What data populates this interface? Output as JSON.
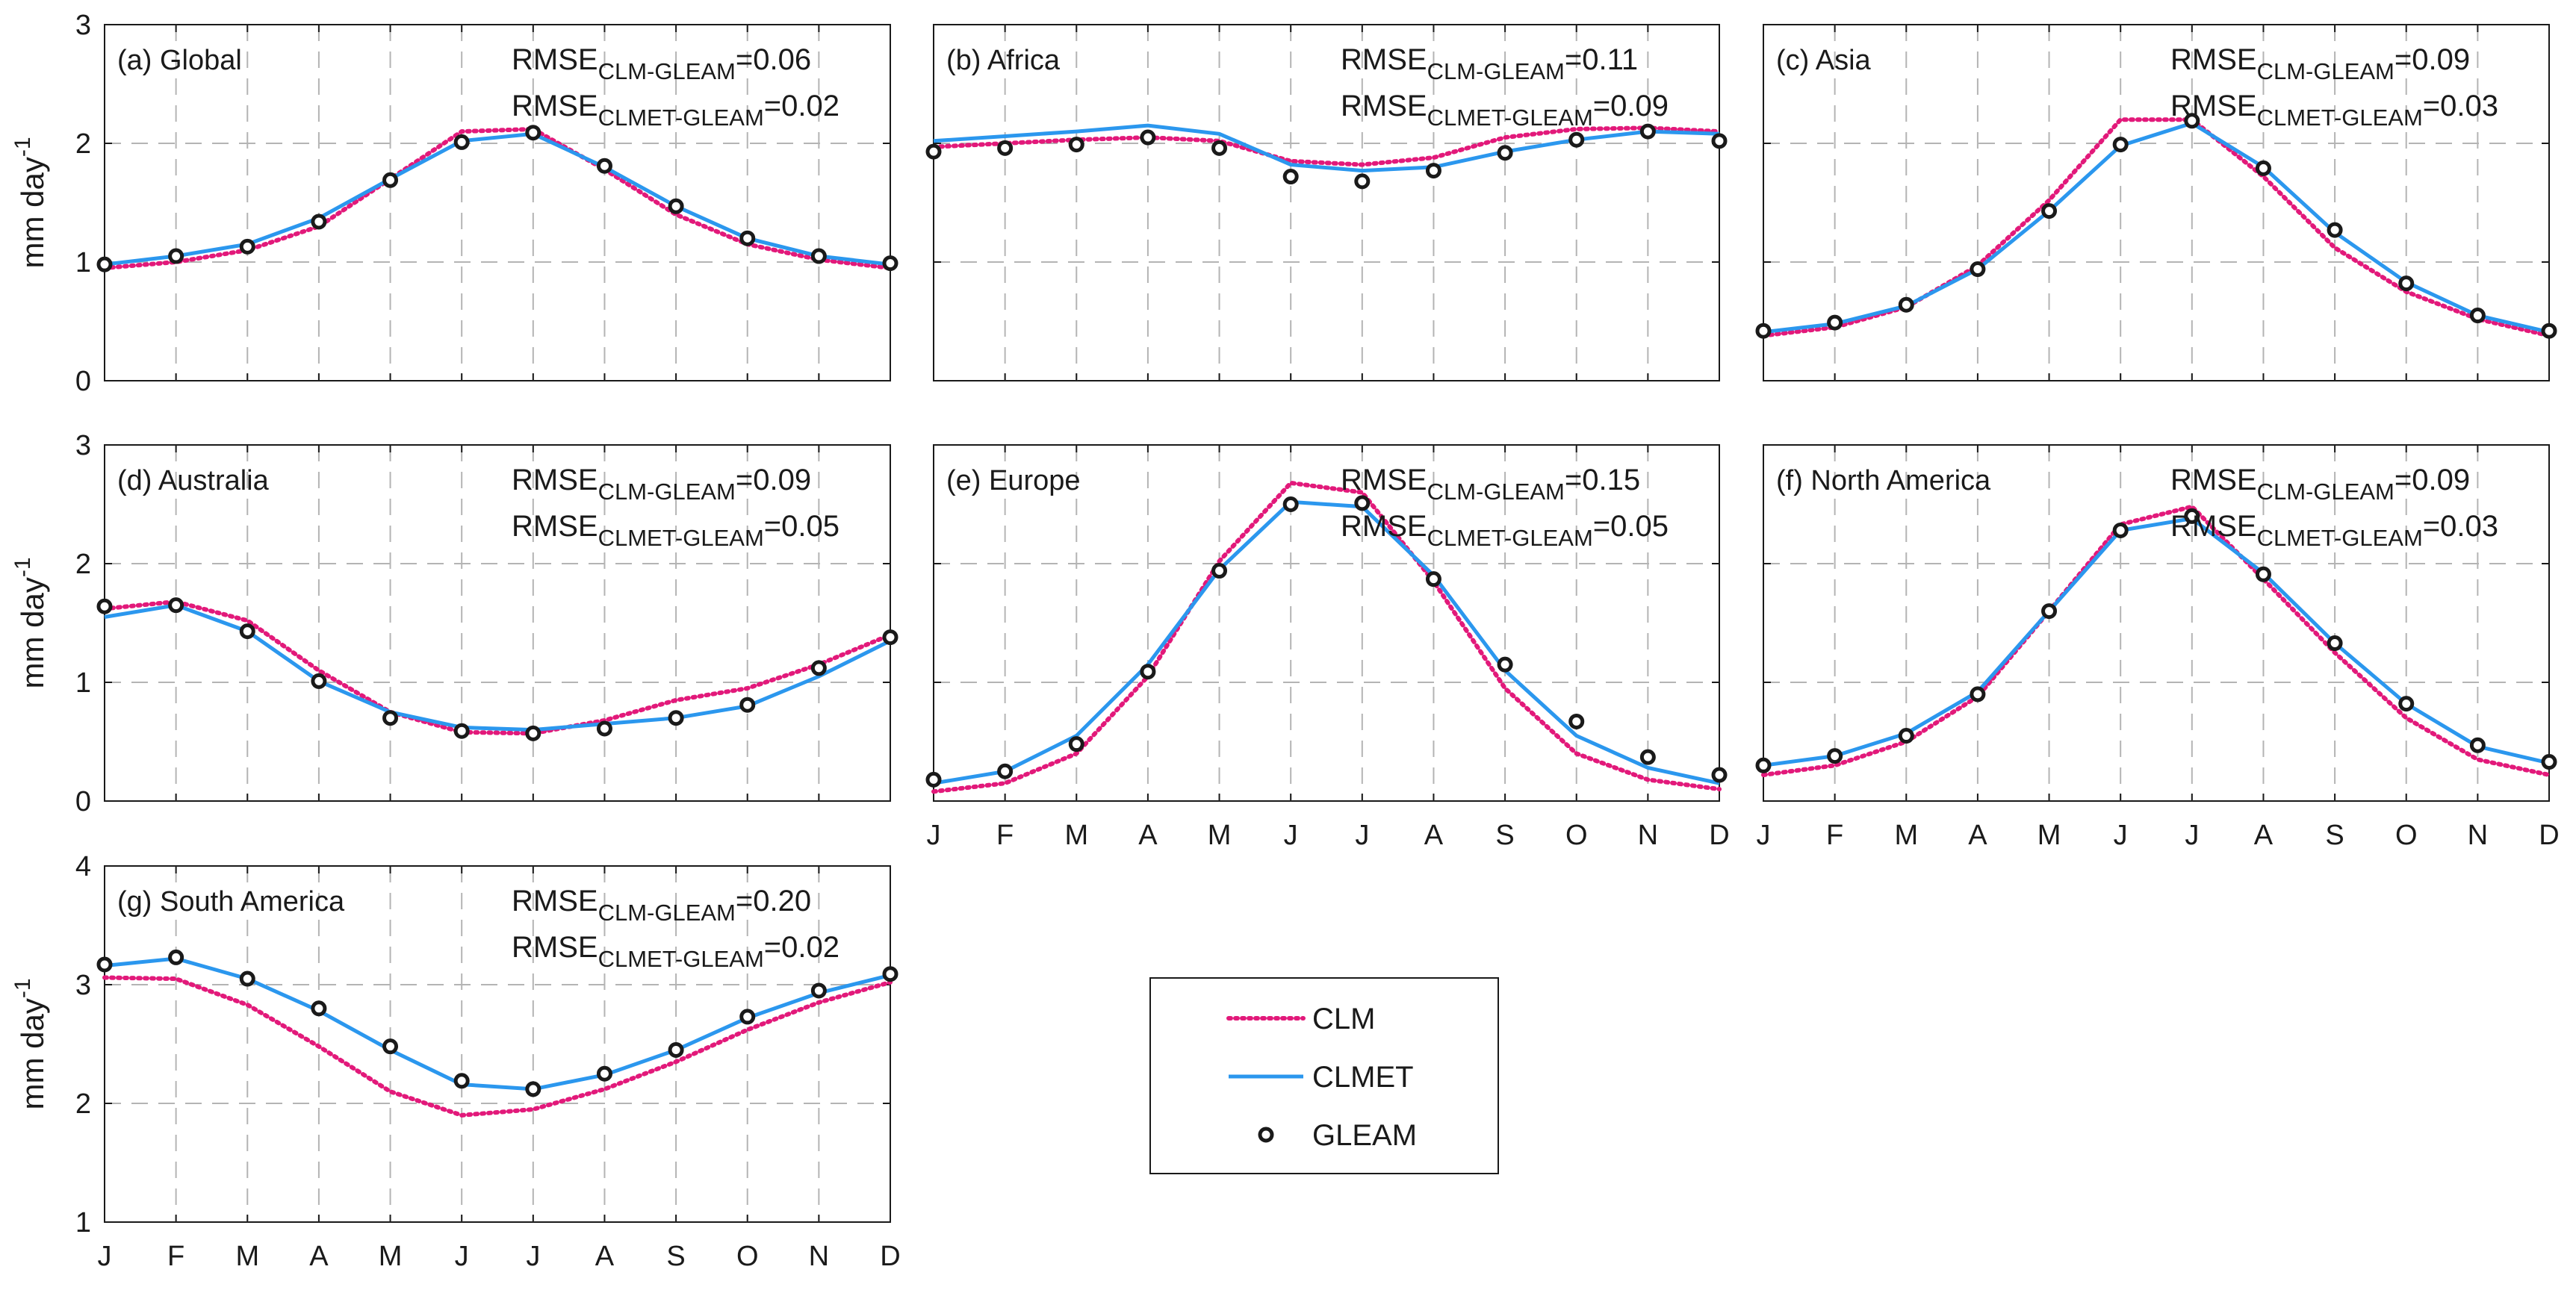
{
  "figure": {
    "ylabel_base": "mm day",
    "ylabel_exp": "-1",
    "rmse_prefix": "RMSE",
    "rmse_clm_sub": "CLM-GLEAM",
    "rmse_clmet_sub": "CLMET-GLEAM",
    "month_labels": [
      "J",
      "F",
      "M",
      "A",
      "M",
      "J",
      "J",
      "A",
      "S",
      "O",
      "N",
      "D"
    ]
  },
  "colors": {
    "clm": "#e2197a",
    "clmet": "#2b97ee",
    "gleam": "#1a1a1a"
  },
  "legend": {
    "entries": [
      {
        "key": "clm",
        "label": "CLM"
      },
      {
        "key": "clmet",
        "label": "CLMET"
      },
      {
        "key": "gleam",
        "label": "GLEAM"
      }
    ]
  },
  "chart_data": [
    {
      "type": "line",
      "title": "(a) Global",
      "ylim": [
        0,
        3
      ],
      "yticks": [
        "0",
        "1",
        "2",
        "3"
      ],
      "rmse_clm": "=0.06",
      "rmse_clmet": "=0.02",
      "series": [
        {
          "name": "CLM",
          "values": [
            0.95,
            1.0,
            1.1,
            1.3,
            1.7,
            2.1,
            2.12,
            1.78,
            1.4,
            1.15,
            1.02,
            0.95
          ]
        },
        {
          "name": "CLMET",
          "values": [
            0.98,
            1.05,
            1.15,
            1.37,
            1.7,
            2.02,
            2.08,
            1.8,
            1.47,
            1.2,
            1.05,
            0.98
          ]
        },
        {
          "name": "GLEAM",
          "values": [
            0.98,
            1.05,
            1.13,
            1.34,
            1.69,
            2.01,
            2.09,
            1.81,
            1.47,
            1.2,
            1.05,
            0.99
          ]
        }
      ]
    },
    {
      "type": "line",
      "title": "(b) Africa",
      "ylim": [
        0,
        3
      ],
      "yticks": [],
      "rmse_clm": "=0.11",
      "rmse_clmet": "=0.09",
      "series": [
        {
          "name": "CLM",
          "values": [
            1.97,
            2.0,
            2.03,
            2.05,
            2.02,
            1.85,
            1.82,
            1.88,
            2.05,
            2.12,
            2.13,
            2.1
          ]
        },
        {
          "name": "CLMET",
          "values": [
            2.02,
            2.06,
            2.1,
            2.15,
            2.08,
            1.82,
            1.77,
            1.8,
            1.93,
            2.03,
            2.1,
            2.08
          ]
        },
        {
          "name": "GLEAM",
          "values": [
            1.93,
            1.96,
            1.99,
            2.05,
            1.96,
            1.72,
            1.68,
            1.77,
            1.92,
            2.03,
            2.1,
            2.02
          ]
        }
      ]
    },
    {
      "type": "line",
      "title": "(c) Asia",
      "ylim": [
        0,
        3
      ],
      "yticks": [],
      "rmse_clm": "=0.09",
      "rmse_clmet": "=0.03",
      "series": [
        {
          "name": "CLM",
          "values": [
            0.38,
            0.45,
            0.62,
            0.97,
            1.52,
            2.2,
            2.2,
            1.72,
            1.12,
            0.75,
            0.52,
            0.38
          ]
        },
        {
          "name": "CLMET",
          "values": [
            0.41,
            0.48,
            0.63,
            0.94,
            1.43,
            1.98,
            2.17,
            1.8,
            1.25,
            0.83,
            0.55,
            0.41
          ]
        },
        {
          "name": "GLEAM",
          "values": [
            0.42,
            0.49,
            0.64,
            0.94,
            1.43,
            1.99,
            2.19,
            1.79,
            1.27,
            0.82,
            0.55,
            0.42
          ]
        }
      ]
    },
    {
      "type": "line",
      "title": "(d) Australia",
      "ylim": [
        0,
        3
      ],
      "yticks": [
        "0",
        "1",
        "2",
        "3"
      ],
      "rmse_clm": "=0.09",
      "rmse_clmet": "=0.05",
      "series": [
        {
          "name": "CLM",
          "values": [
            1.62,
            1.68,
            1.52,
            1.1,
            0.75,
            0.58,
            0.57,
            0.68,
            0.85,
            0.95,
            1.15,
            1.4
          ]
        },
        {
          "name": "CLMET",
          "values": [
            1.55,
            1.65,
            1.43,
            1.01,
            0.75,
            0.62,
            0.6,
            0.65,
            0.7,
            0.8,
            1.05,
            1.35
          ]
        },
        {
          "name": "GLEAM",
          "values": [
            1.64,
            1.65,
            1.43,
            1.01,
            0.7,
            0.59,
            0.57,
            0.61,
            0.7,
            0.81,
            1.12,
            1.38
          ]
        }
      ]
    },
    {
      "type": "line",
      "title": "(e) Europe",
      "ylim": [
        0,
        3
      ],
      "yticks": [],
      "rmse_clm": "=0.15",
      "rmse_clmet": "=0.05",
      "series": [
        {
          "name": "CLM",
          "values": [
            0.08,
            0.15,
            0.4,
            1.05,
            2.02,
            2.68,
            2.6,
            1.85,
            0.95,
            0.4,
            0.18,
            0.1
          ]
        },
        {
          "name": "CLMET",
          "values": [
            0.15,
            0.25,
            0.55,
            1.15,
            1.95,
            2.52,
            2.48,
            1.9,
            1.1,
            0.55,
            0.28,
            0.15
          ]
        },
        {
          "name": "GLEAM",
          "values": [
            0.18,
            0.25,
            0.48,
            1.09,
            1.94,
            2.5,
            2.51,
            1.87,
            1.15,
            0.67,
            0.37,
            0.22
          ]
        }
      ]
    },
    {
      "type": "line",
      "title": "(f) North America",
      "ylim": [
        0,
        3
      ],
      "yticks": [],
      "rmse_clm": "=0.09",
      "rmse_clmet": "=0.03",
      "series": [
        {
          "name": "CLM",
          "values": [
            0.22,
            0.3,
            0.5,
            0.88,
            1.6,
            2.33,
            2.48,
            1.87,
            1.25,
            0.7,
            0.35,
            0.22
          ]
        },
        {
          "name": "CLMET",
          "values": [
            0.3,
            0.38,
            0.57,
            0.92,
            1.6,
            2.28,
            2.38,
            1.92,
            1.33,
            0.82,
            0.46,
            0.32
          ]
        },
        {
          "name": "GLEAM",
          "values": [
            0.3,
            0.38,
            0.55,
            0.9,
            1.6,
            2.28,
            2.4,
            1.91,
            1.33,
            0.82,
            0.47,
            0.33
          ]
        }
      ]
    },
    {
      "type": "line",
      "title": "(g) South America",
      "ylim": [
        1,
        4
      ],
      "yticks": [
        "1",
        "2",
        "3",
        "4"
      ],
      "rmse_clm": "=0.20",
      "rmse_clmet": "=0.02",
      "series": [
        {
          "name": "CLM",
          "values": [
            3.06,
            3.05,
            2.83,
            2.48,
            2.1,
            1.9,
            1.95,
            2.12,
            2.35,
            2.62,
            2.85,
            3.02
          ]
        },
        {
          "name": "CLMET",
          "values": [
            3.16,
            3.22,
            3.05,
            2.78,
            2.45,
            2.16,
            2.12,
            2.24,
            2.45,
            2.72,
            2.93,
            3.08
          ]
        },
        {
          "name": "GLEAM",
          "values": [
            3.17,
            3.23,
            3.05,
            2.8,
            2.48,
            2.19,
            2.12,
            2.25,
            2.45,
            2.73,
            2.95,
            3.09
          ]
        }
      ]
    }
  ]
}
